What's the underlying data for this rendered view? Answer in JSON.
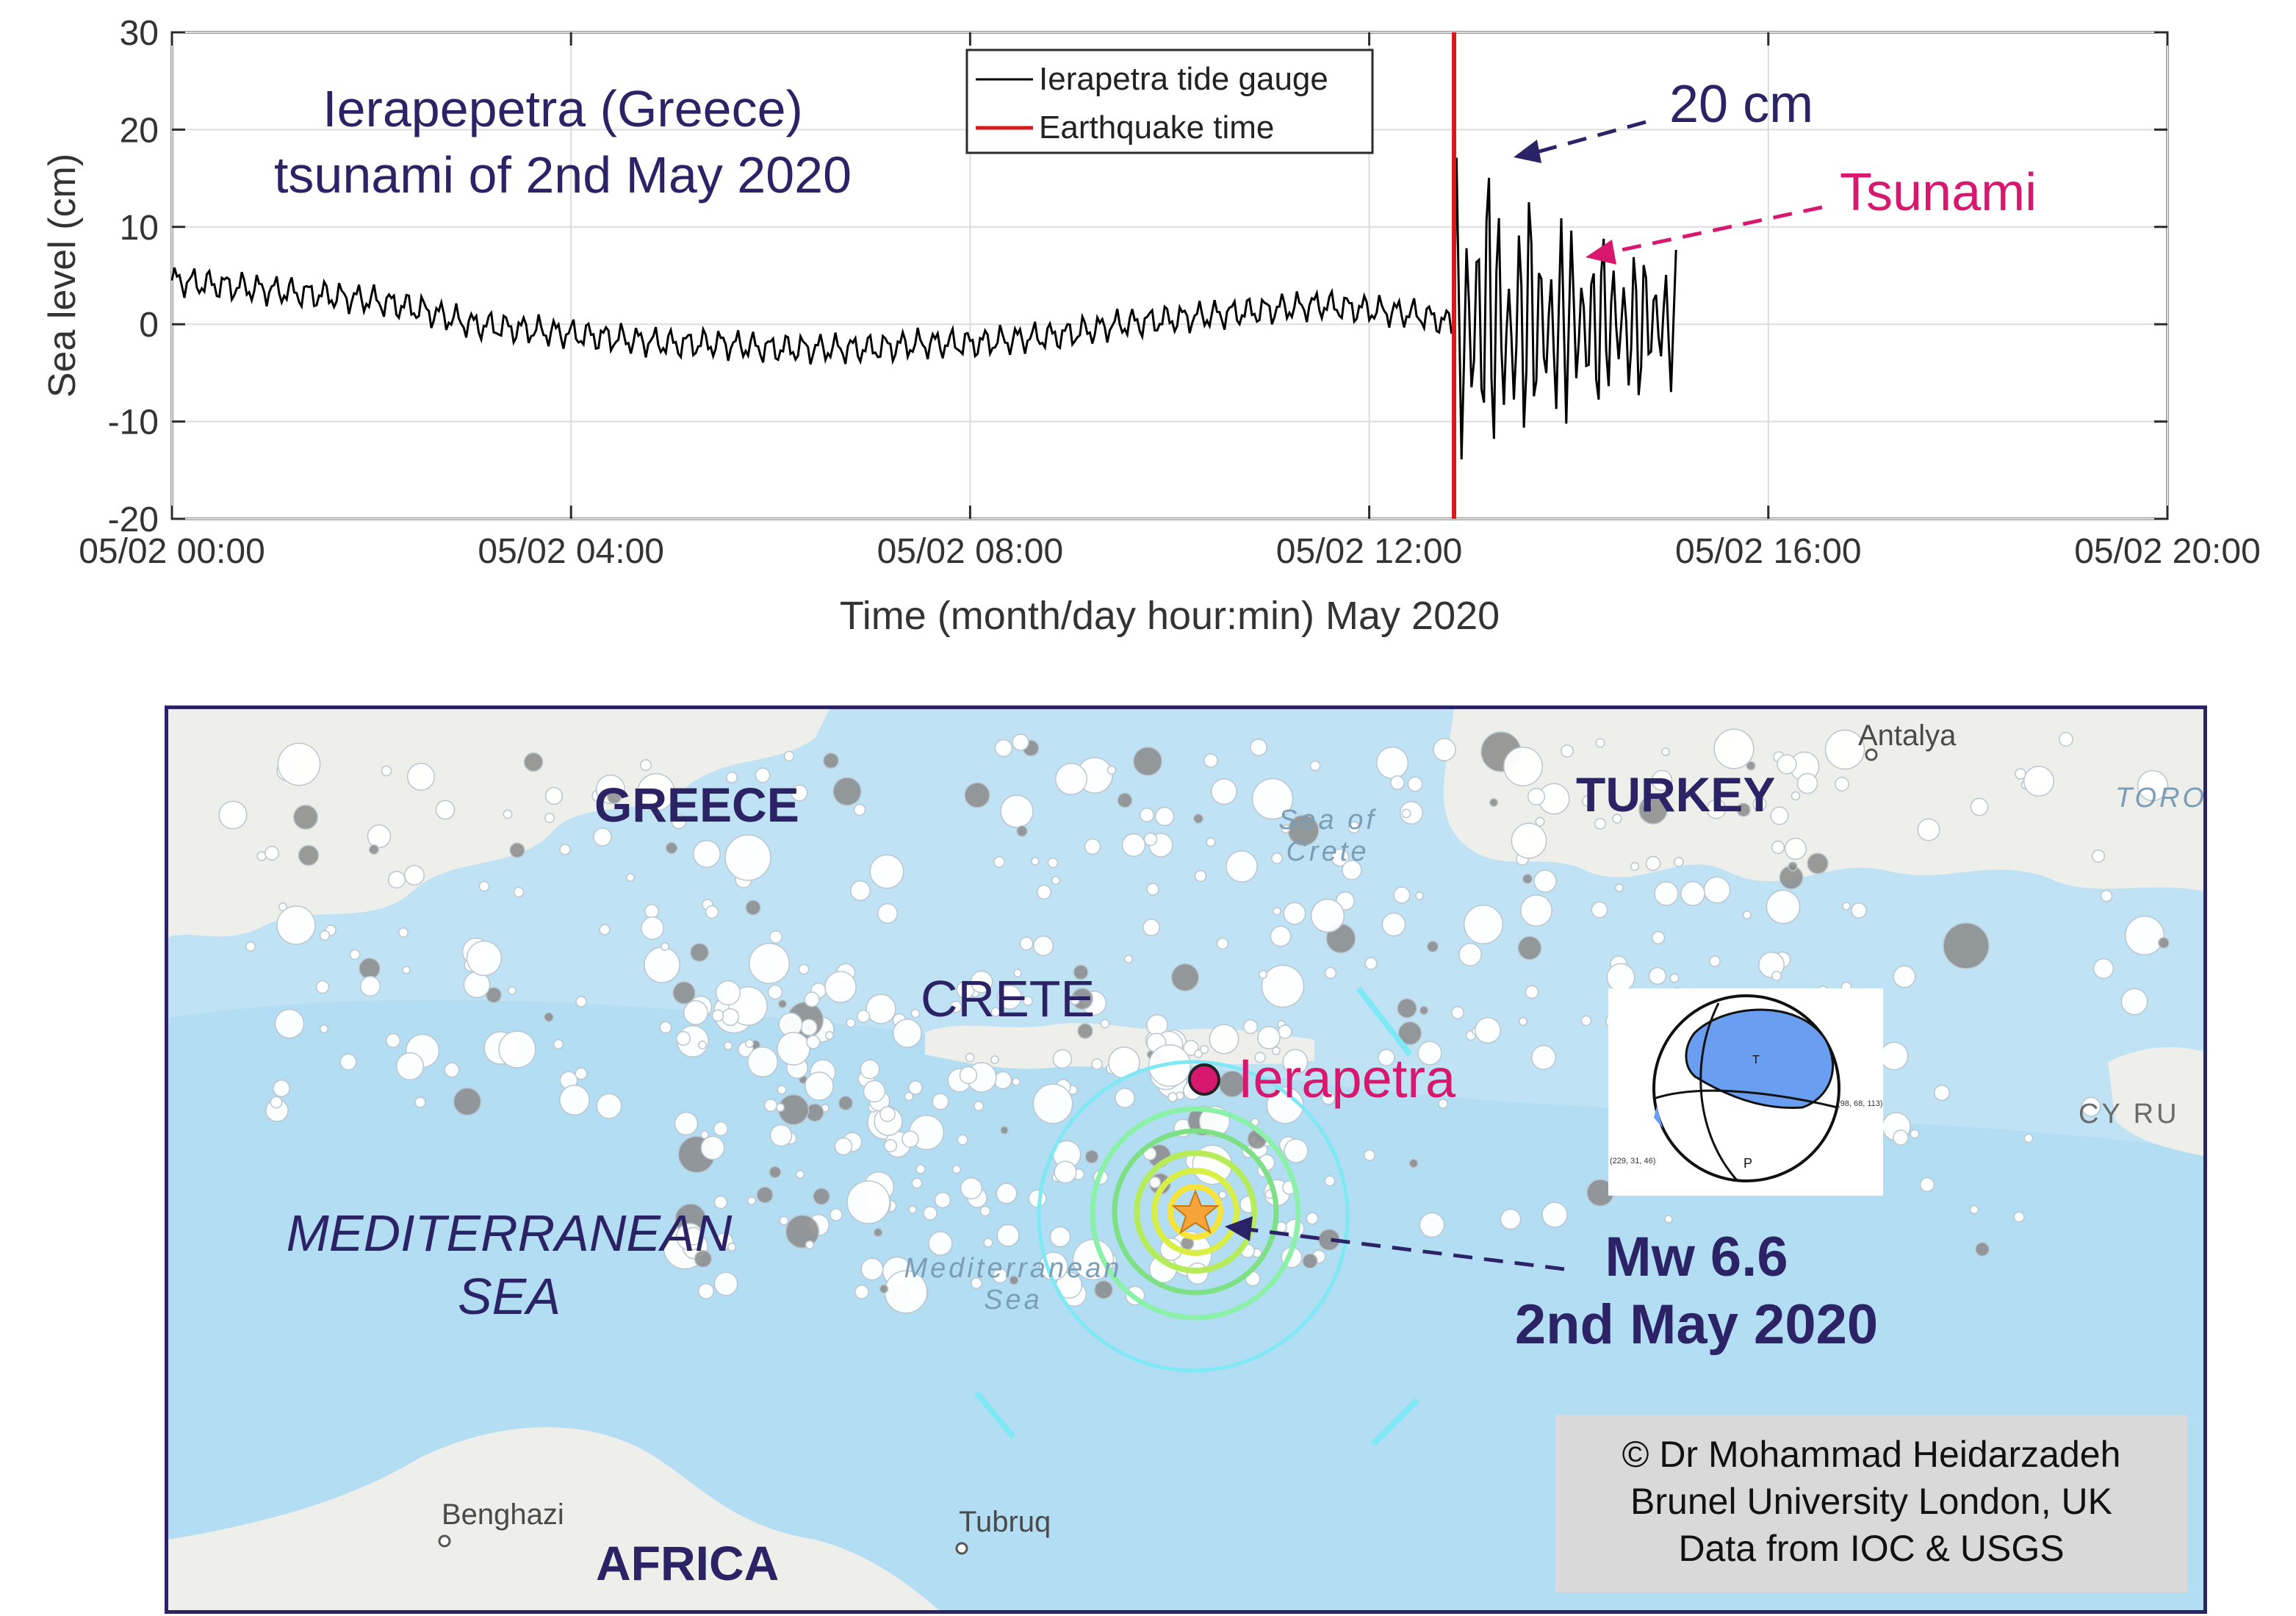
{
  "chart_data": {
    "type": "line",
    "title": "",
    "xlabel": "Time (month/day hour:min) May 2020",
    "ylabel": "Sea level (cm)",
    "xlim": [
      "05/02 00:00",
      "05/02 20:00"
    ],
    "ylim": [
      -20,
      30
    ],
    "x_ticks": [
      "05/02 00:00",
      "05/02 04:00",
      "05/02 08:00",
      "05/02 12:00",
      "05/02 16:00",
      "05/02 20:00"
    ],
    "y_ticks": [
      -20,
      -10,
      0,
      10,
      20,
      30
    ],
    "grid": true,
    "legend_position": "top-center",
    "series": [
      {
        "name": "Ierapetra tide gauge",
        "color": "#000000",
        "x_hours": [
          0,
          0.5,
          1,
          1.5,
          2,
          2.5,
          3,
          3.5,
          4,
          4.5,
          5,
          5.5,
          6,
          6.5,
          7,
          7.5,
          8,
          8.5,
          9,
          9.5,
          10,
          10.5,
          11,
          11.5,
          12,
          12.5,
          12.85,
          13,
          13.2,
          13.4,
          13.6,
          13.8,
          14,
          14.2,
          14.4,
          14.6,
          14.8,
          15,
          15.1
        ],
        "values": [
          4.5,
          4,
          3.5,
          3,
          2.5,
          1.5,
          0,
          -0.5,
          -1,
          -1.5,
          -2,
          -2,
          -2.5,
          -2.5,
          -2.5,
          -2,
          -2,
          -1.5,
          -1,
          0,
          0.5,
          1,
          1.5,
          2,
          1.5,
          1,
          0,
          -5,
          12,
          -10,
          8,
          -6,
          5,
          -4,
          4,
          -3,
          3,
          -1,
          2
        ]
      },
      {
        "name": "Earthquake time",
        "color": "#d7191c",
        "x_hours": [
          12.85,
          12.85
        ],
        "values": [
          -20,
          30
        ]
      }
    ],
    "annotations": {
      "title_text": [
        "Ierapepetra (Greece)",
        "tsunami of 2nd May 2020"
      ],
      "amplitude": "20 cm",
      "tsunami": "Tsunami"
    }
  },
  "map": {
    "countries": {
      "greece": "GREECE",
      "turkey": "TURKEY",
      "africa": "AFRICA"
    },
    "crete": "CRETE",
    "sea": [
      "MEDITERRANEAN",
      "SEA"
    ],
    "station": "Ierapetra",
    "cities": {
      "antalya": "Antalya",
      "benghazi": "Benghazi",
      "tubruq": "Tubruq"
    },
    "basemap": {
      "sea_of_crete": [
        "Sea of",
        "Crete"
      ],
      "med": [
        "Mediterranean",
        "Sea"
      ],
      "toro": "TORO",
      "cyprus": "CY  RU"
    },
    "earthquake": [
      "Mw 6.6",
      "2nd May 2020"
    ],
    "beachball": {
      "t_axis": "T",
      "p_axis": "P",
      "plane1": "(98, 68, 113)",
      "plane2": "(229, 31, 46)"
    },
    "credit": [
      "© Dr Mohammad Heidarzadeh",
      "Brunel University London, UK",
      "Data from IOC & USGS"
    ],
    "colors": {
      "border": "#2b2365",
      "sea": "#bfe3f4",
      "station": "#d8176e",
      "mechanism": "#6a9ef0"
    }
  }
}
